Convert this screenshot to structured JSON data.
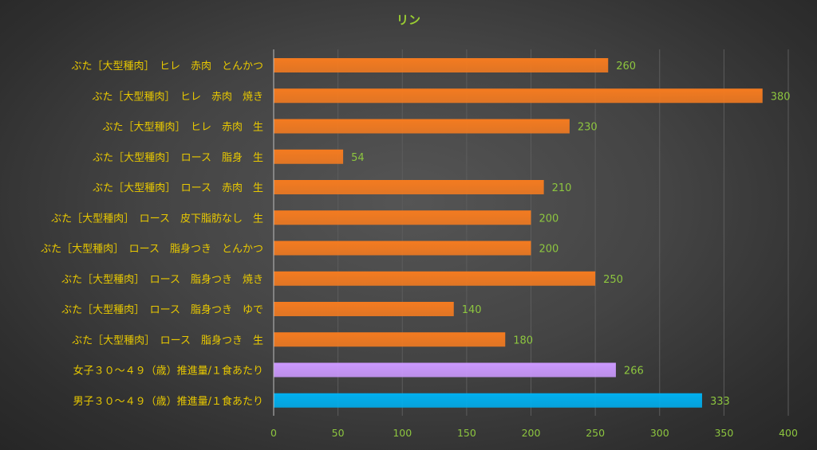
{
  "chart_data": {
    "type": "bar",
    "orientation": "horizontal",
    "title": "リン",
    "categories": [
      "ぶた［大型種肉］　ヒレ　赤肉　とんかつ",
      "ぶた［大型種肉］　ヒレ　赤肉　焼き",
      "ぶた［大型種肉］　ヒレ　赤肉　生",
      "ぶた［大型種肉］　ロース　脂身　生",
      "ぶた［大型種肉］　ロース　赤肉　生",
      "ぶた［大型種肉］　ロース　皮下脂肪なし　生",
      "ぶた［大型種肉］　ロース　脂身つき　とんかつ",
      "ぶた［大型種肉］　ロース　脂身つき　焼き",
      "ぶた［大型種肉］　ロース　脂身つき　ゆで",
      "ぶた［大型種肉］　ロース　脂身つき　生",
      "女子３０～４９（歳）推進量/１食あたり",
      "男子３０～４９（歳）推進量/１食あたり"
    ],
    "values": [
      260,
      380,
      230,
      54,
      210,
      200,
      200,
      250,
      140,
      180,
      266,
      333
    ],
    "value_labels": [
      "260",
      "380",
      "230",
      "54",
      "210",
      "200",
      "200",
      "250",
      "140",
      "180",
      "266",
      "333"
    ],
    "bar_colors": [
      "#F47B20",
      "#F47B20",
      "#F47B20",
      "#F47B20",
      "#F47B20",
      "#F47B20",
      "#F47B20",
      "#F47B20",
      "#F47B20",
      "#F47B20",
      "#CC99FF",
      "#00B0F0"
    ],
    "xlim": [
      0,
      400
    ],
    "x_ticks": [
      0,
      50,
      100,
      150,
      200,
      250,
      300,
      350,
      400
    ],
    "x_tick_labels": [
      "0",
      "50",
      "100",
      "150",
      "200",
      "250",
      "300",
      "350",
      "400"
    ],
    "grid": true,
    "legend": "none"
  }
}
